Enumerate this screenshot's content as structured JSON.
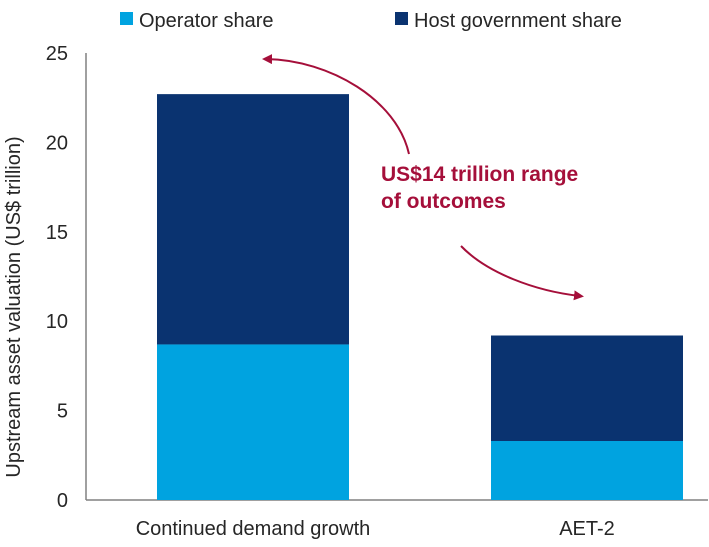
{
  "chart_data": {
    "type": "bar",
    "stacked": true,
    "categories": [
      "Continued demand growth",
      "AET-2"
    ],
    "series": [
      {
        "name": "Operator share",
        "values": [
          8.7,
          3.3
        ],
        "color": "#00A3E0"
      },
      {
        "name": "Host government share",
        "values": [
          14.0,
          5.9
        ],
        "color": "#0A3370"
      }
    ],
    "ylabel": "Upstream asset valuation (US$ trillion)",
    "xlabel": "",
    "ylim": [
      0,
      25
    ],
    "yticks": [
      0,
      5,
      10,
      15,
      20,
      25
    ],
    "grid": false,
    "legend_position": "top",
    "annotation": {
      "lines": [
        "US$14 trillion range",
        "of outcomes"
      ],
      "color": "#A50F3A"
    }
  }
}
